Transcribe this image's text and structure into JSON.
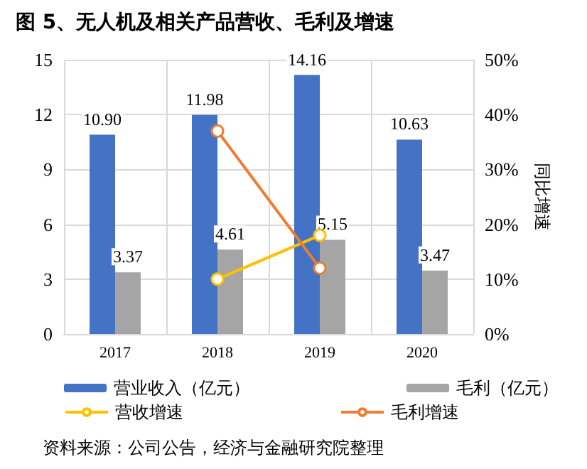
{
  "chart_data": {
    "type": "bar",
    "title": "图 5、无人机及相关产品营收、毛利及增速",
    "y2label": "同比增速",
    "categories": [
      "2017",
      "2018",
      "2019",
      "2020"
    ],
    "series": [
      {
        "name": "营业收入（亿元）",
        "color": "#4472c4",
        "values": [
          10.9,
          11.98,
          14.16,
          10.63
        ],
        "value_labels": [
          "10.90",
          "11.98",
          "14.16",
          "10.63"
        ]
      },
      {
        "name": "毛利（亿元）",
        "color": "#a5a5a5",
        "values": [
          3.37,
          4.61,
          5.15,
          3.47
        ],
        "value_labels": [
          "3.37",
          "4.61",
          "5.15",
          "3.47"
        ]
      },
      {
        "name": "营收增速",
        "type": "line",
        "axis": "y2",
        "color": "#ffc000",
        "values": [
          null,
          10,
          18,
          null
        ]
      },
      {
        "name": "毛利增速",
        "type": "line",
        "axis": "y2",
        "color": "#ed7d31",
        "values": [
          null,
          37,
          12,
          null
        ]
      }
    ],
    "ylim": [
      0,
      15
    ],
    "yticks": [
      0,
      3,
      6,
      9,
      12,
      15
    ],
    "y2lim": [
      0,
      50
    ],
    "y2ticks": [
      {
        "value": 0,
        "label": "0%"
      },
      {
        "value": 10,
        "label": "10%"
      },
      {
        "value": 20,
        "label": "20%"
      },
      {
        "value": 30,
        "label": "30%"
      },
      {
        "value": 40,
        "label": "40%"
      },
      {
        "value": 50,
        "label": "50%"
      }
    ],
    "grid": true,
    "legend": "bottom",
    "marker": "circle",
    "annotations": [
      "资料来源：公司公告，经济与金融研究院整理"
    ]
  }
}
